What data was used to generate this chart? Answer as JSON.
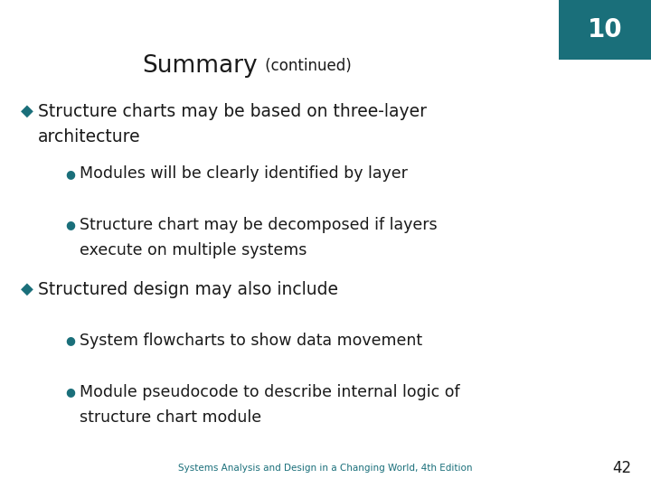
{
  "background_color": "#ffffff",
  "slide_number": "10",
  "slide_number_bg": "#1a6f7a",
  "slide_number_color": "#ffffff",
  "title_main": "Summary",
  "title_sub": " (continued)",
  "title_color": "#1a1a1a",
  "footer_text": "Systems Analysis and Design in a Changing World, 4th Edition",
  "footer_page": "42",
  "footer_color": "#1a6f7a",
  "bullet_color": "#1a6f7a",
  "text_color": "#1a1a1a",
  "bullet1_line1": "Structure charts may be based on three-layer",
  "bullet1_line2": "architecture",
  "sub1_1": "Modules will be clearly identified by layer",
  "sub1_2_line1": "Structure chart may be decomposed if layers",
  "sub1_2_line2": "execute on multiple systems",
  "bullet2": "Structured design may also include",
  "sub2_1": "System flowcharts to show data movement",
  "sub2_2_line1": "Module pseudocode to describe internal logic of",
  "sub2_2_line2": "structure chart module"
}
